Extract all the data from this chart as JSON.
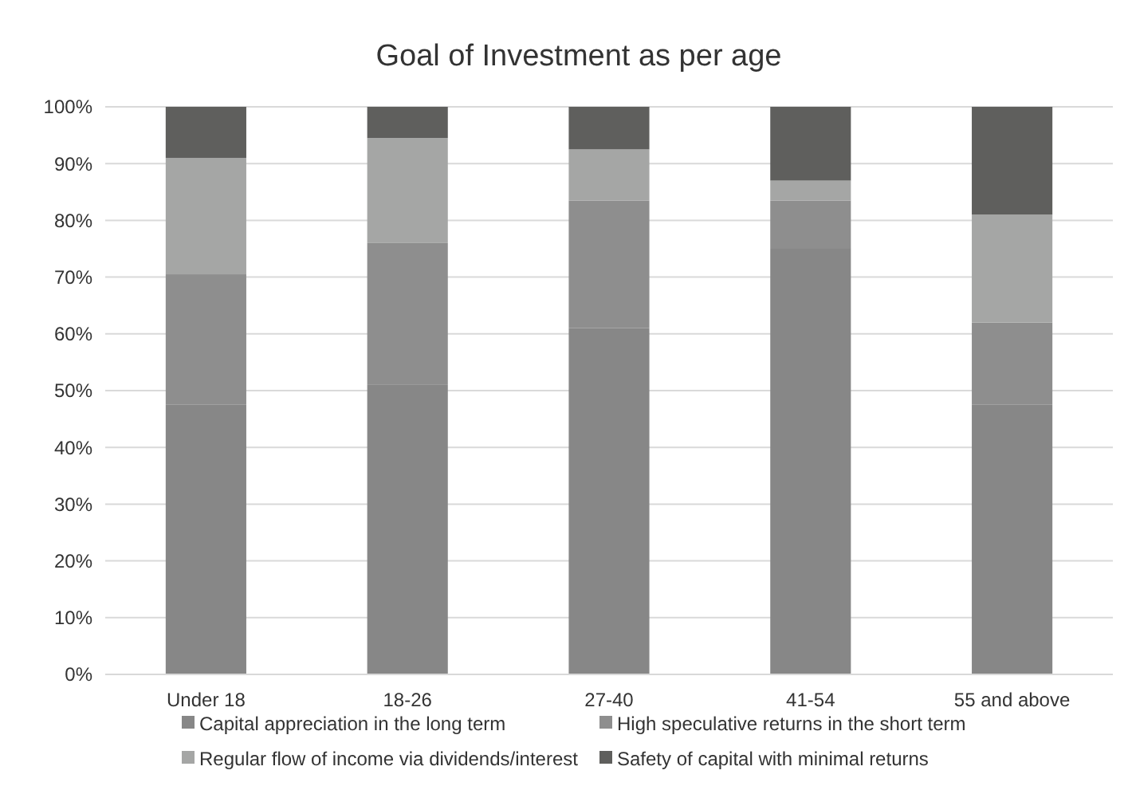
{
  "chart_data": {
    "type": "bar",
    "title": "Goal of Investment as per age",
    "categories": [
      "Under 18",
      "18-26",
      "27-40",
      "41-54",
      "55 and above"
    ],
    "stacked": true,
    "series": [
      {
        "name": "Capital appreciation in the long term",
        "color": "#878787",
        "values": [
          47.5,
          51,
          61,
          75,
          47.5
        ]
      },
      {
        "name": "High speculative returns in the short term",
        "color": "#8e8e8e",
        "values": [
          23,
          25,
          22.5,
          8.5,
          14.5
        ]
      },
      {
        "name": "Regular flow of income via dividends/interest",
        "color": "#a5a6a5",
        "values": [
          20.5,
          18.5,
          9,
          3.5,
          19
        ]
      },
      {
        "name": "Safety of capital with minimal returns",
        "color": "#5f5f5d",
        "values": [
          9,
          5.5,
          7.5,
          13,
          19
        ]
      }
    ],
    "ylim": [
      0,
      100
    ],
    "yticks": [
      {
        "value": 0,
        "label": "0%"
      },
      {
        "value": 10,
        "label": "10%"
      },
      {
        "value": 20,
        "label": "20%"
      },
      {
        "value": 30,
        "label": "30%"
      },
      {
        "value": 40,
        "label": "40%"
      },
      {
        "value": 50,
        "label": "50%"
      },
      {
        "value": 60,
        "label": "60%"
      },
      {
        "value": 70,
        "label": "70%"
      },
      {
        "value": 80,
        "label": "80%"
      },
      {
        "value": 90,
        "label": "90%"
      },
      {
        "value": 100,
        "label": "100%"
      }
    ],
    "grid": "y",
    "legend": "bottom"
  }
}
